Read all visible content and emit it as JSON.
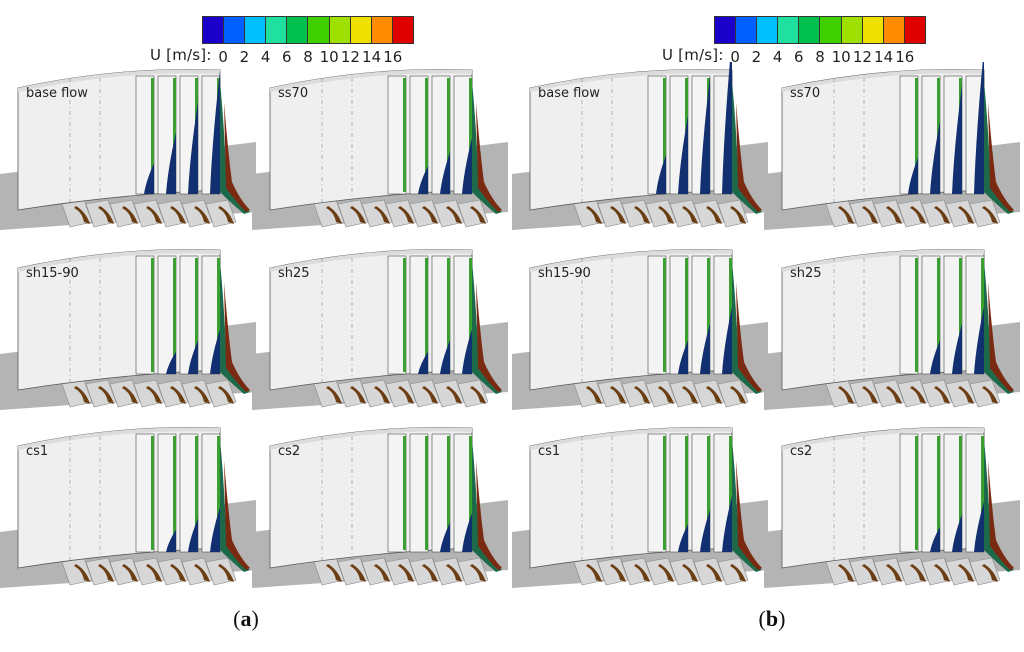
{
  "legend": {
    "label": "U [m/s]:",
    "ticks": [
      "0",
      "2",
      "4",
      "6",
      "8",
      "10",
      "12",
      "14",
      "16"
    ],
    "colors": [
      "#1a00c8",
      "#0060ff",
      "#00c0ff",
      "#20e0a0",
      "#00c050",
      "#40d000",
      "#a0e000",
      "#f0e000",
      "#ff8c00",
      "#e00000"
    ]
  },
  "figure_a": {
    "caption_open": "(",
    "caption_letter": "a",
    "caption_close": ")",
    "panels": [
      "base flow",
      "ss70",
      "sh15-90",
      "sh25",
      "cs1",
      "cs2"
    ]
  },
  "figure_b": {
    "caption_open": "(",
    "caption_letter": "b",
    "caption_close": ")",
    "panels": [
      "base flow",
      "ss70",
      "sh15-90",
      "sh25",
      "cs1",
      "cs2"
    ]
  }
}
